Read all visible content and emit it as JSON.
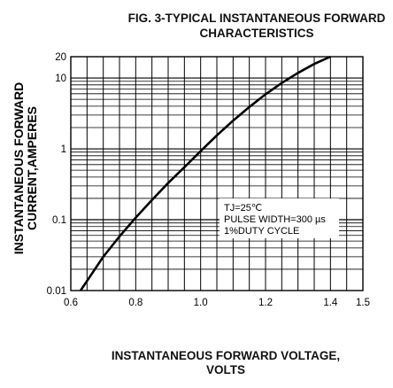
{
  "chart_data": {
    "type": "line",
    "title_line1": "FIG. 3-TYPICAL INSTANTANEOUS FORWARD",
    "title_line2": "CHARACTERISTICS",
    "ylabel_line1": "INSTANTANEOUS FORWARD",
    "ylabel_line2": "CURRENT,AMPERES",
    "xlabel_line1": "INSTANTANEOUS FORWARD VOLTAGE,",
    "xlabel_line2": "VOLTS",
    "xlim": [
      0.6,
      1.5
    ],
    "ylim": [
      0.01,
      20
    ],
    "yscale": "log",
    "grid": true,
    "x_ticks": [
      {
        "value": 0.6,
        "label": "0.6"
      },
      {
        "value": 0.8,
        "label": "0.8"
      },
      {
        "value": 1.0,
        "label": "1.0"
      },
      {
        "value": 1.2,
        "label": "1.2"
      },
      {
        "value": 1.4,
        "label": "1.4"
      },
      {
        "value": 1.5,
        "label": "1.5"
      }
    ],
    "y_ticks": [
      {
        "value": 0.01,
        "label": "0.01"
      },
      {
        "value": 0.1,
        "label": "0.1"
      },
      {
        "value": 1,
        "label": "1"
      },
      {
        "value": 10,
        "label": "10"
      },
      {
        "value": 20,
        "label": "20"
      }
    ],
    "annotation": {
      "lines": [
        "TJ=25℃",
        "PULSE WIDTH=300 µs",
        "1%DUTY CYCLE"
      ]
    },
    "series": [
      {
        "color": "#000000",
        "x": [
          0.63,
          0.66,
          0.7,
          0.75,
          0.8,
          0.85,
          0.9,
          0.95,
          1.0,
          1.05,
          1.1,
          1.15,
          1.2,
          1.25,
          1.3,
          1.35,
          1.4
        ],
        "y": [
          0.01,
          0.016,
          0.03,
          0.058,
          0.107,
          0.19,
          0.33,
          0.55,
          0.93,
          1.55,
          2.5,
          3.9,
          5.9,
          8.5,
          11.8,
          15.8,
          20
        ]
      }
    ]
  }
}
